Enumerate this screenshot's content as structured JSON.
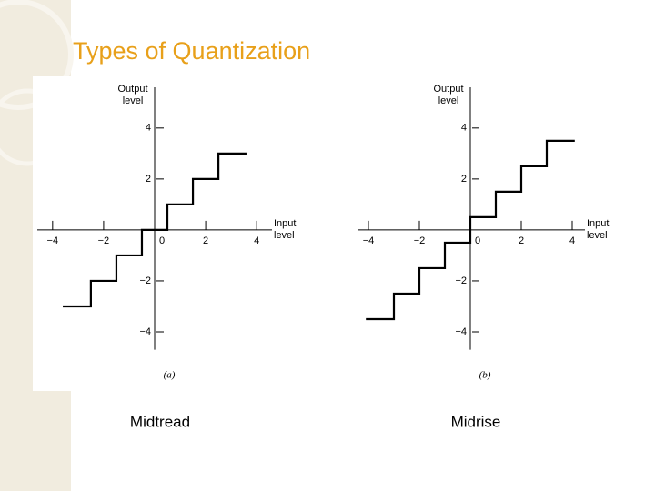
{
  "title": "Types of Quantization",
  "chart_data": [
    {
      "type": "line",
      "caption": "(a)",
      "label": "Midtread",
      "xlabel": [
        "Input",
        "level"
      ],
      "ylabel": [
        "Output",
        "level"
      ],
      "x": [
        -3.6,
        -2.5,
        -2.5,
        -1.5,
        -1.5,
        -0.5,
        -0.5,
        0.5,
        0.5,
        1.5,
        1.5,
        2.5,
        2.5,
        3.6
      ],
      "values": [
        -3,
        -3,
        -2,
        -2,
        -1,
        -1,
        0,
        0,
        1,
        1,
        2,
        2,
        3,
        3
      ],
      "color": "#000000",
      "xlim": [
        -4.6,
        4.6
      ],
      "ylim": [
        -4.7,
        5.6
      ],
      "xticks": [
        {
          "value": -4,
          "label": "−4"
        },
        {
          "value": -2,
          "label": "−2"
        },
        0,
        2,
        4
      ],
      "yticks": [
        {
          "value": -4,
          "label": "−4"
        },
        {
          "value": -2,
          "label": "−2"
        },
        2,
        4
      ]
    },
    {
      "type": "line",
      "caption": "(b)",
      "label": "Midrise",
      "xlabel": [
        "Input",
        "level"
      ],
      "ylabel": [
        "Output",
        "level"
      ],
      "x": [
        -4.1,
        -3,
        -3,
        -2,
        -2,
        -1,
        -1,
        0,
        0,
        1,
        1,
        2,
        2,
        3,
        3,
        4.1
      ],
      "values": [
        -3.5,
        -3.5,
        -2.5,
        -2.5,
        -1.5,
        -1.5,
        -0.5,
        -0.5,
        0.5,
        0.5,
        1.5,
        1.5,
        2.5,
        2.5,
        3.5,
        3.5
      ],
      "color": "#000000",
      "xlim": [
        -4.4,
        4.5
      ],
      "ylim": [
        -4.7,
        5.6
      ],
      "xticks": [
        {
          "value": -4,
          "label": "−4"
        },
        {
          "value": -2,
          "label": "−2"
        },
        0,
        2,
        4
      ],
      "yticks": [
        {
          "value": -4,
          "label": "−4"
        },
        {
          "value": -2,
          "label": "−2"
        },
        2,
        4
      ]
    }
  ]
}
